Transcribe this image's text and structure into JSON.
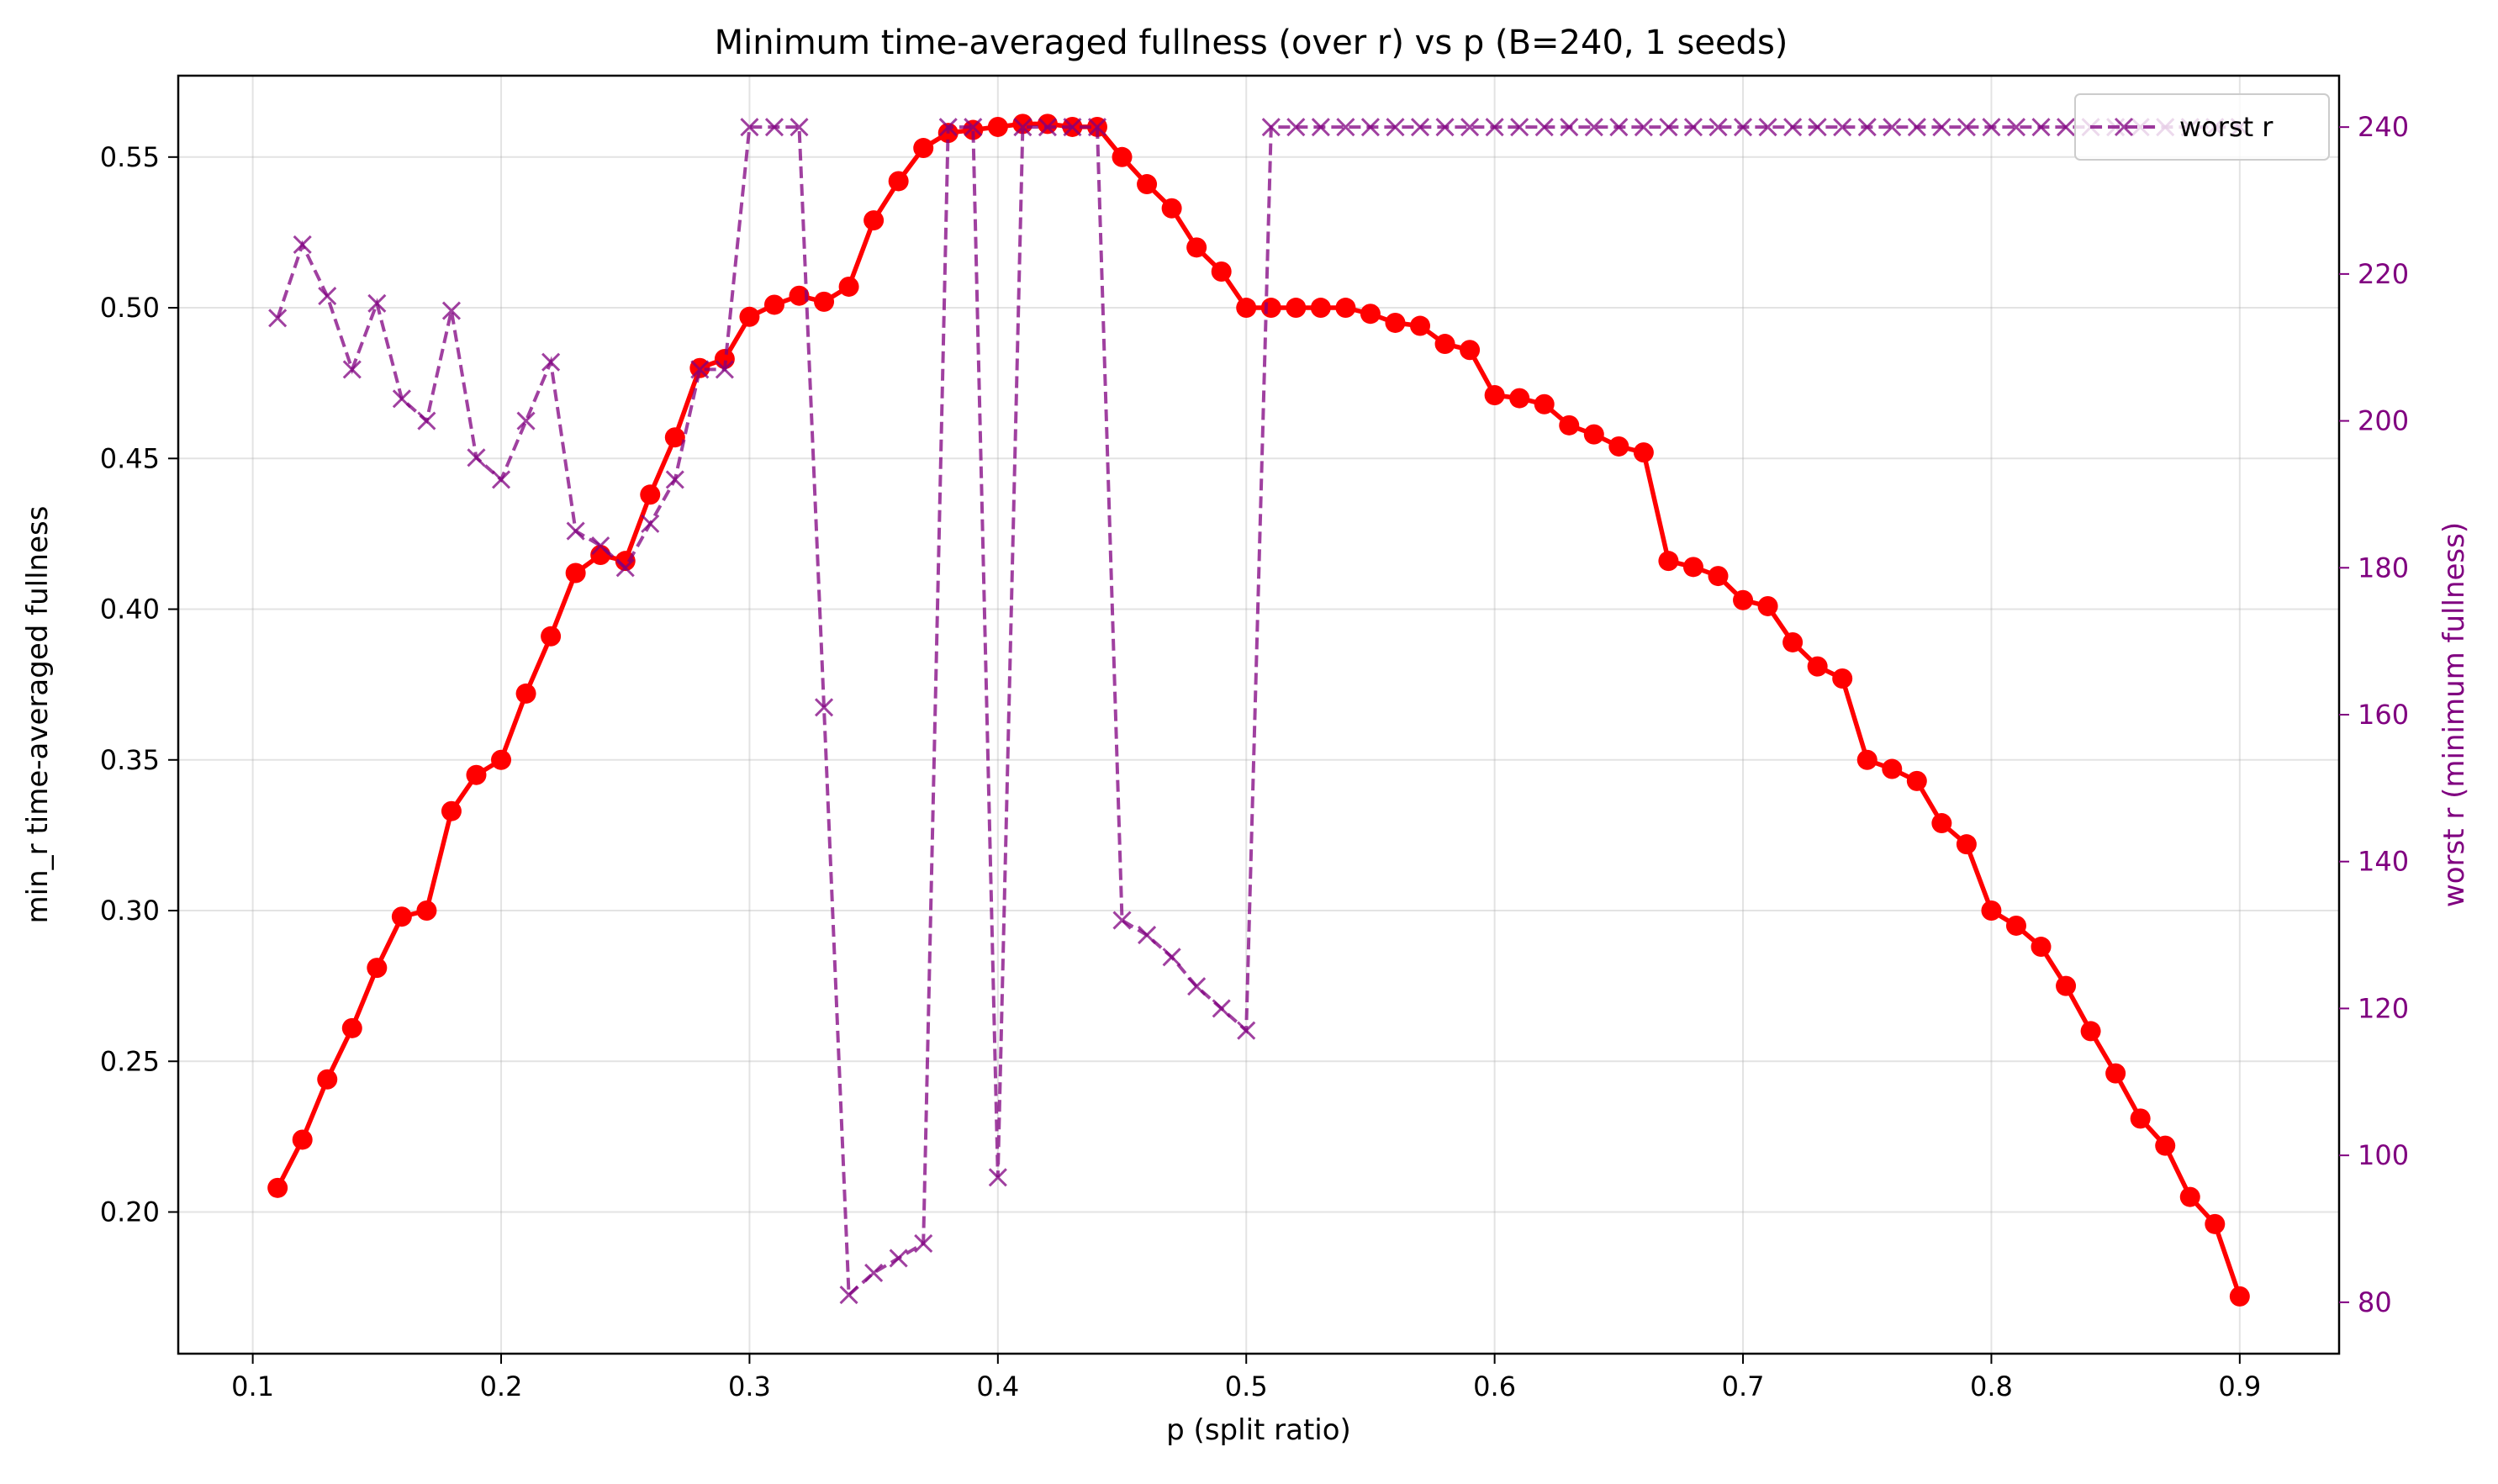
{
  "chart_data": {
    "type": "line",
    "title": "Minimum time-averaged fullness (over r) vs p (B=240, 1 seeds)",
    "xlabel": "p (split ratio)",
    "ylabel": "min_r time-averaged fullness",
    "ylabel_right": "worst r (minimum fullness)",
    "xlim": [
      0.07,
      0.94
    ],
    "ylim": [
      0.153,
      0.577
    ],
    "ylim_right": [
      73,
      247
    ],
    "x_ticks": [
      "0.1",
      "0.2",
      "0.3",
      "0.4",
      "0.5",
      "0.6",
      "0.7",
      "0.8",
      "0.9"
    ],
    "y_ticks": [
      "0.20",
      "0.25",
      "0.30",
      "0.35",
      "0.40",
      "0.45",
      "0.50",
      "0.55"
    ],
    "y_ticks_right": [
      "80",
      "100",
      "120",
      "140",
      "160",
      "180",
      "200",
      "220",
      "240"
    ],
    "grid": true,
    "legend_position": "top-right",
    "x": [
      0.11,
      0.12,
      0.13,
      0.14,
      0.15,
      0.16,
      0.17,
      0.18,
      0.19,
      0.2,
      0.21,
      0.22,
      0.23,
      0.24,
      0.25,
      0.26,
      0.27,
      0.28,
      0.29,
      0.3,
      0.31,
      0.32,
      0.33,
      0.34,
      0.35,
      0.36,
      0.37,
      0.38,
      0.39,
      0.4,
      0.41,
      0.42,
      0.43,
      0.44,
      0.45,
      0.46,
      0.47,
      0.48,
      0.49,
      0.5,
      0.51,
      0.52,
      0.53,
      0.54,
      0.55,
      0.56,
      0.57,
      0.58,
      0.59,
      0.6,
      0.61,
      0.62,
      0.63,
      0.64,
      0.65,
      0.66,
      0.67,
      0.68,
      0.69,
      0.7,
      0.71,
      0.72,
      0.73,
      0.74,
      0.75,
      0.76,
      0.77,
      0.78,
      0.79,
      0.8,
      0.81,
      0.82,
      0.83,
      0.84,
      0.85,
      0.86,
      0.87,
      0.88,
      0.89,
      0.9
    ],
    "series": [
      {
        "axis": "left",
        "color": "#ff0000",
        "style": "solid",
        "marker": "circle",
        "values": [
          0.208,
          0.224,
          0.244,
          0.261,
          0.281,
          0.298,
          0.3,
          0.333,
          0.345,
          0.35,
          0.372,
          0.391,
          0.412,
          0.418,
          0.416,
          0.438,
          0.457,
          0.48,
          0.483,
          0.497,
          0.501,
          0.504,
          0.502,
          0.507,
          0.529,
          0.542,
          0.553,
          0.558,
          0.559,
          0.56,
          0.561,
          0.561,
          0.56,
          0.56,
          0.55,
          0.541,
          0.533,
          0.52,
          0.512,
          0.5,
          0.5,
          0.5,
          0.5,
          0.5,
          0.498,
          0.495,
          0.494,
          0.488,
          0.486,
          0.471,
          0.47,
          0.468,
          0.461,
          0.458,
          0.454,
          0.452,
          0.416,
          0.414,
          0.411,
          0.403,
          0.401,
          0.389,
          0.381,
          0.377,
          0.35,
          0.347,
          0.343,
          0.329,
          0.322,
          0.3,
          0.295,
          0.288,
          0.275,
          0.26,
          0.246,
          0.231,
          0.222,
          0.205,
          0.196,
          0.172
        ]
      },
      {
        "name": "worst r",
        "axis": "right",
        "color": "#800080",
        "style": "dashed",
        "marker": "x",
        "values": [
          214,
          224,
          217,
          207,
          216,
          203,
          200,
          215,
          195,
          192,
          200,
          208,
          185,
          183,
          180,
          186,
          192,
          207,
          207,
          240,
          240,
          240,
          161,
          81,
          84,
          86,
          88,
          240,
          240,
          97,
          240,
          240,
          240,
          240,
          132,
          130,
          127,
          123,
          120,
          117,
          240,
          240,
          240,
          240,
          240,
          240,
          240,
          240,
          240,
          240,
          240,
          240,
          240,
          240,
          240,
          240,
          240,
          240,
          240,
          240,
          240,
          240,
          240,
          240,
          240,
          240,
          240,
          240,
          240,
          240,
          240,
          240,
          240,
          240,
          240,
          240,
          240,
          240,
          240,
          240
        ]
      }
    ]
  }
}
